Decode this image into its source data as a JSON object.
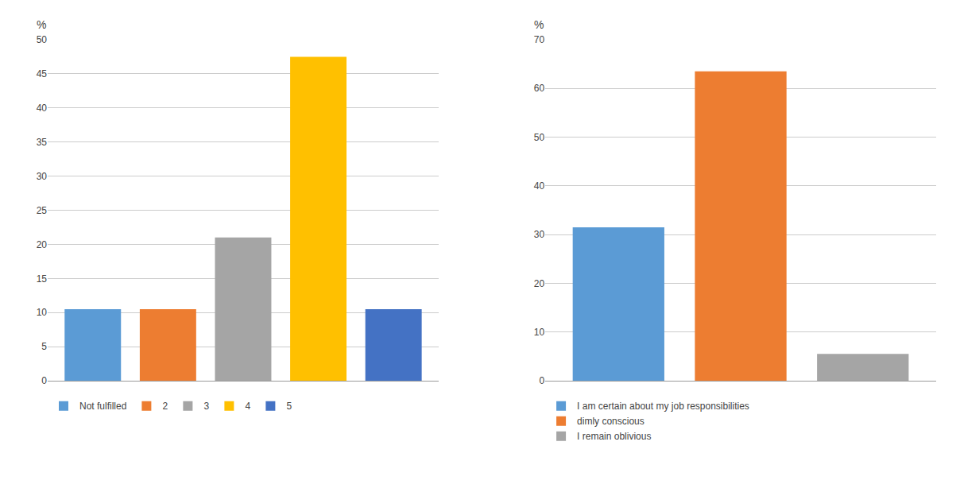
{
  "chart_data": [
    {
      "type": "bar",
      "categories": [
        "Not fulfilled",
        "2",
        "3",
        "4",
        "5"
      ],
      "values": [
        10.5,
        10.5,
        21.0,
        47.5,
        10.5
      ],
      "colors": [
        "#5b9bd5",
        "#ed7d31",
        "#a5a5a5",
        "#ffc000",
        "#4472c4"
      ],
      "ylabel": "%",
      "ylim": [
        0,
        50
      ],
      "yticks": [
        0,
        5,
        10,
        15,
        20,
        25,
        30,
        35,
        40,
        45,
        50
      ],
      "grid": true,
      "legend": "bottom",
      "tick_labels": "y"
    },
    {
      "type": "bar",
      "categories": [
        "I am certain about my job responsibilities",
        "dimly conscious",
        "I remain oblivious"
      ],
      "values": [
        31.5,
        63.5,
        5.5
      ],
      "colors": [
        "#5b9bd5",
        "#ed7d31",
        "#a5a5a5"
      ],
      "ylabel": "%",
      "ylim": [
        0,
        70
      ],
      "yticks": [
        0,
        10,
        20,
        30,
        40,
        50,
        60,
        70
      ],
      "grid": true,
      "legend": "bottom",
      "tick_labels": "y"
    }
  ]
}
